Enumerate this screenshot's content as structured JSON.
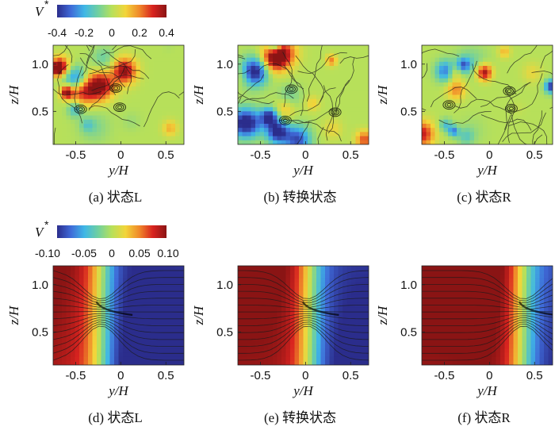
{
  "colormap": [
    "#2b2d8c",
    "#3f6ad8",
    "#3fb7e6",
    "#6fd0a0",
    "#b7e05a",
    "#f2d53a",
    "#f08a2a",
    "#d8231f",
    "#8a1414"
  ],
  "colorbars": [
    {
      "label": "V",
      "label_sup": "*",
      "ticks": [
        "-0.4",
        "-0.2",
        "0",
        "0.2",
        "0.4"
      ],
      "range": [
        -0.4,
        0.4
      ]
    },
    {
      "label": "V",
      "label_sup": "*",
      "ticks": [
        "-0.10",
        "-0.05",
        "0",
        "0.05",
        "0.10"
      ],
      "range": [
        -0.1,
        0.1
      ]
    }
  ],
  "panels": [
    {
      "caption": "(a) 状态L",
      "xlabel": "y/H",
      "ylabel": "z/H",
      "xticks": [
        "-0.5",
        "0",
        "0.5"
      ],
      "yticks": [
        "1.0",
        "0.5"
      ],
      "field": "instantaneous",
      "seed": 3
    },
    {
      "caption": "(b) 转换状态",
      "xlabel": "y/H",
      "ylabel": "z/H",
      "xticks": [
        "-0.5",
        "0",
        "0.5"
      ],
      "yticks": [
        "1.0",
        "0.5"
      ],
      "field": "instantaneous",
      "seed": 11
    },
    {
      "caption": "(c) 状态R",
      "xlabel": "y/H",
      "ylabel": "z/H",
      "xticks": [
        "-0.5",
        "0",
        "0.5"
      ],
      "yticks": [
        "1.0",
        "0.5"
      ],
      "field": "instantaneous",
      "seed": 27
    },
    {
      "caption": "(d) 状态L",
      "xlabel": "y/H",
      "ylabel": "z/H",
      "xticks": [
        "-0.5",
        "0",
        "0.5"
      ],
      "yticks": [
        "1.0",
        "0.5"
      ],
      "field": "mean",
      "wake": "left"
    },
    {
      "caption": "(e) 转换状态",
      "xlabel": "y/H",
      "ylabel": "z/H",
      "xticks": [
        "-0.5",
        "0",
        "0.5"
      ],
      "yticks": [
        "1.0",
        "0.5"
      ],
      "field": "mean",
      "wake": "center"
    },
    {
      "caption": "(f) 状态R",
      "xlabel": "y/H",
      "ylabel": "z/H",
      "xticks": [
        "-0.5",
        "0",
        "0.5"
      ],
      "yticks": [
        "1.0",
        "0.5"
      ],
      "field": "mean",
      "wake": "right"
    }
  ],
  "chart_data": [
    {
      "type": "heatmap",
      "title": "",
      "caption": "(a) 状态L",
      "xlabel": "y/H",
      "ylabel": "z/H",
      "xlim": [
        -0.75,
        0.7
      ],
      "ylim": [
        0.15,
        1.2
      ],
      "colorbar_range": [
        -0.4,
        0.4
      ],
      "overlay": "streamlines"
    },
    {
      "type": "heatmap",
      "title": "",
      "caption": "(b) 转换状态",
      "xlabel": "y/H",
      "ylabel": "z/H",
      "xlim": [
        -0.75,
        0.7
      ],
      "ylim": [
        0.15,
        1.2
      ],
      "colorbar_range": [
        -0.4,
        0.4
      ],
      "overlay": "streamlines"
    },
    {
      "type": "heatmap",
      "title": "",
      "caption": "(c) 状态R",
      "xlabel": "y/H",
      "ylabel": "z/H",
      "xlim": [
        -0.75,
        0.7
      ],
      "ylim": [
        0.15,
        1.2
      ],
      "colorbar_range": [
        -0.4,
        0.4
      ],
      "overlay": "streamlines"
    },
    {
      "type": "heatmap",
      "title": "",
      "caption": "(d) 状态L",
      "xlabel": "y/H",
      "ylabel": "z/H",
      "xlim": [
        -0.75,
        0.7
      ],
      "ylim": [
        0.15,
        1.2
      ],
      "colorbar_range": [
        -0.1,
        0.1
      ],
      "overlay": "streamlines"
    },
    {
      "type": "heatmap",
      "title": "",
      "caption": "(e) 转换状态",
      "xlabel": "y/H",
      "ylabel": "z/H",
      "xlim": [
        -0.75,
        0.7
      ],
      "ylim": [
        0.15,
        1.2
      ],
      "colorbar_range": [
        -0.1,
        0.1
      ],
      "overlay": "streamlines"
    },
    {
      "type": "heatmap",
      "title": "",
      "caption": "(f) 状态R",
      "xlabel": "y/H",
      "ylabel": "z/H",
      "xlim": [
        -0.75,
        0.7
      ],
      "ylim": [
        0.15,
        1.2
      ],
      "colorbar_range": [
        -0.1,
        0.1
      ],
      "overlay": "streamlines"
    }
  ]
}
